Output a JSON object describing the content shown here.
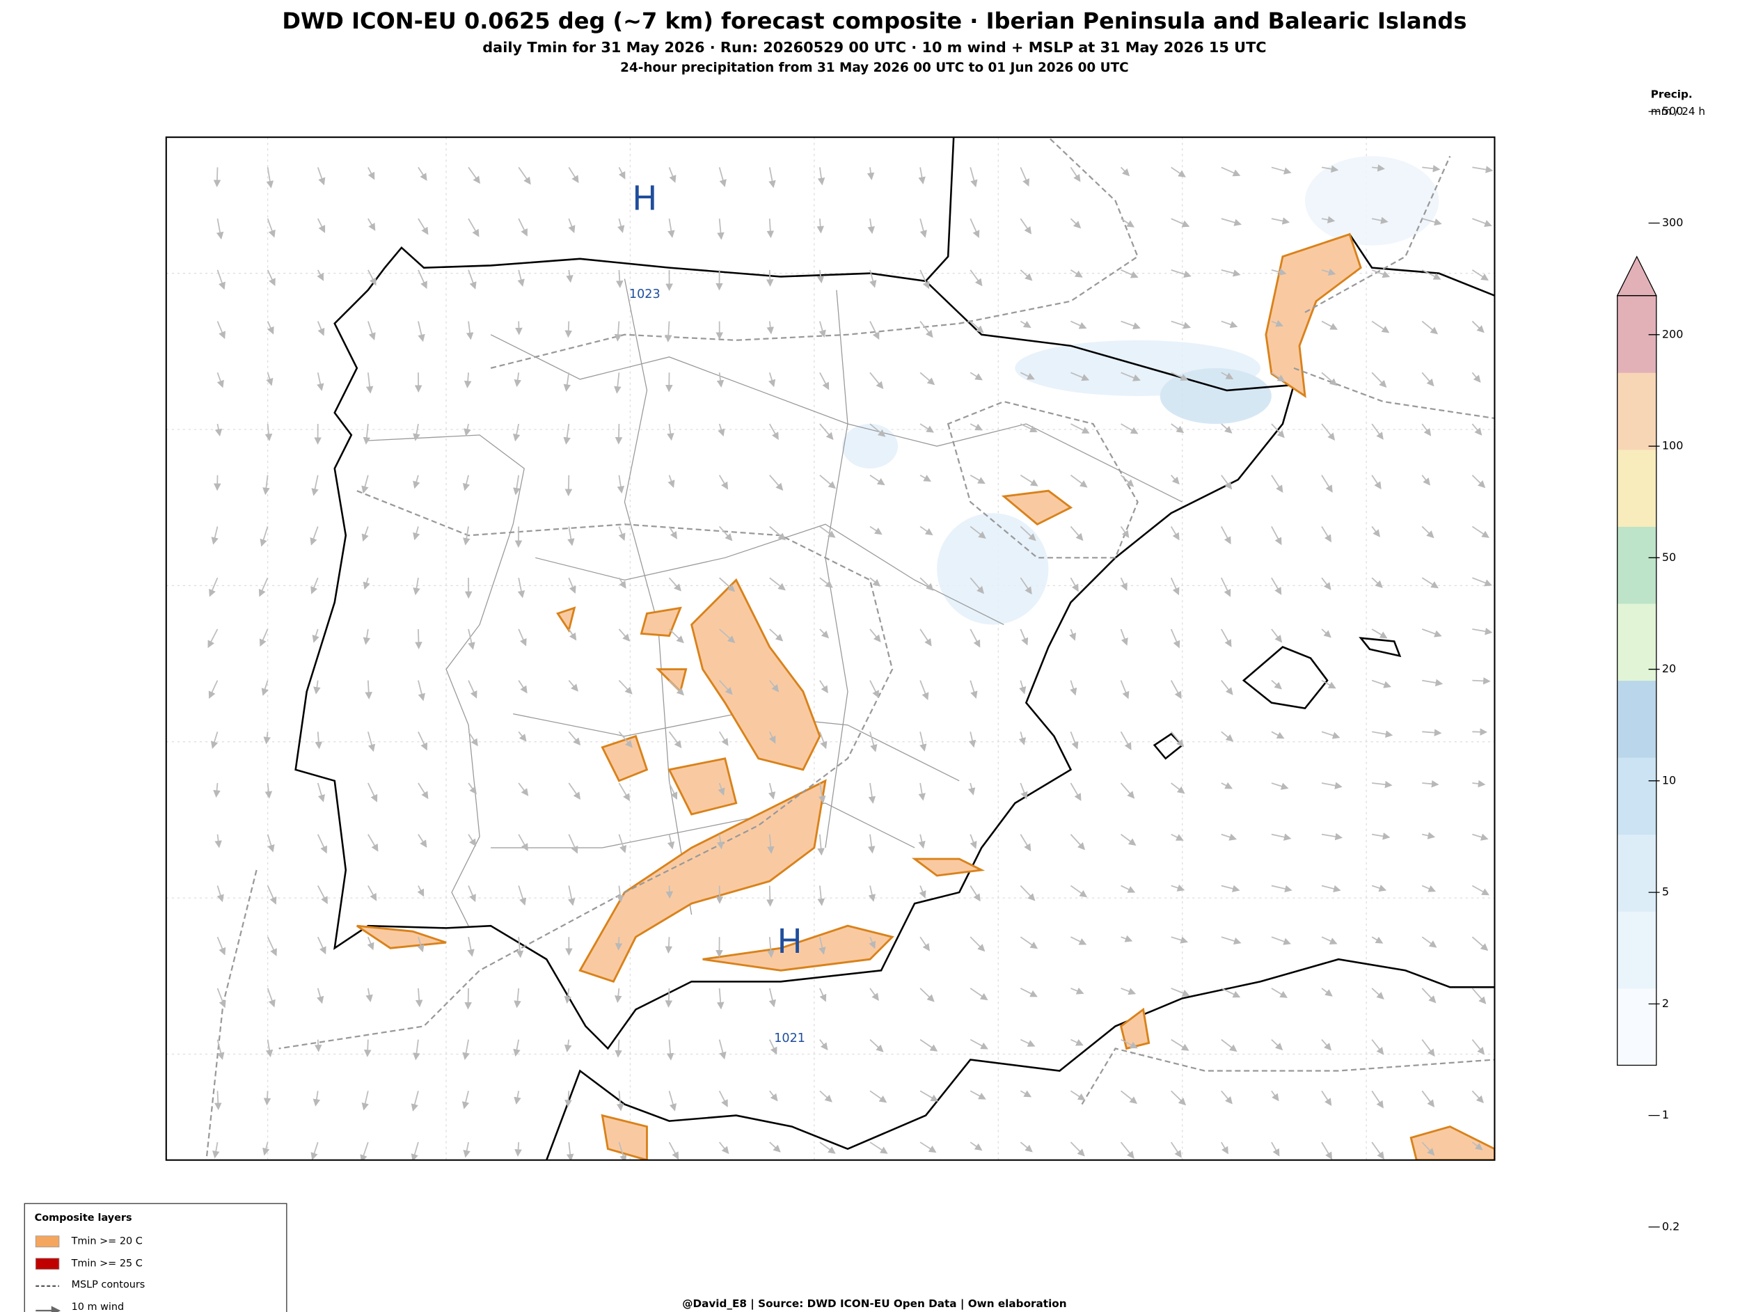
{
  "header": {
    "title": "DWD ICON-EU 0.0625 deg (~7 km) forecast composite · Iberian Peninsula and Balearic Islands",
    "subtitle": "daily Tmin for 31 May 2026 · Run: 20260529 00 UTC · 10 m wind + MSLP at 31 May 2026 15 UTC",
    "subtitle2": "24-hour precipitation from 31 May 2026 00 UTC to 01 Jun 2026 00 UTC"
  },
  "map": {
    "highs": [
      "H",
      "H"
    ],
    "isobar_labels": [
      "1023",
      "1021"
    ]
  },
  "colorbar": {
    "title": "Precip.",
    "unit": "mm / 24 h",
    "ticks": [
      0.2,
      1,
      2,
      5,
      10,
      20,
      50,
      100,
      200,
      300,
      500
    ],
    "colors": [
      "#f7fbff",
      "#eaf4fb",
      "#ddedf8",
      "#cbe3f2",
      "#bad6eb",
      "#e1f5d6",
      "#bde3c8",
      "#f8ecbc",
      "#f7d6b6",
      "#e2b1b8"
    ]
  },
  "legend": {
    "title": "Composite layers",
    "items": [
      "Tmin >= 20 C",
      "Tmin >= 25 C",
      "MSLP contours",
      "10 m wind"
    ]
  },
  "footer": "@David_E8 | Source: DWD ICON-EU Open Data | Own elaboration"
}
